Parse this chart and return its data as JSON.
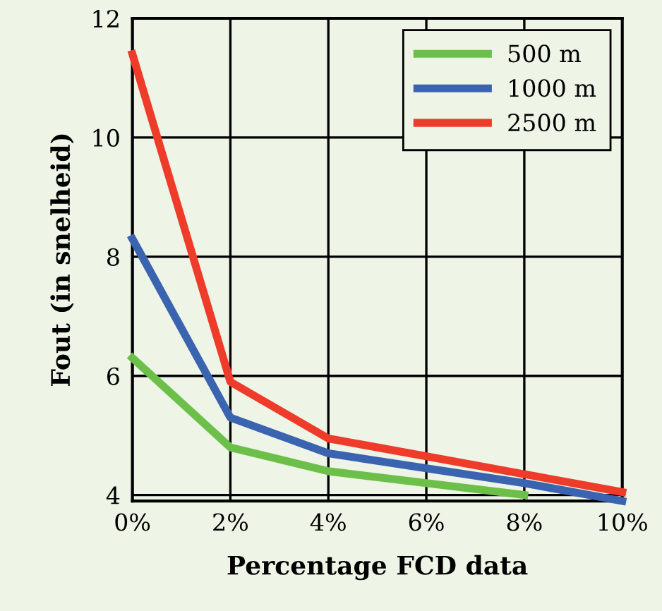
{
  "chart_data": {
    "type": "line",
    "xlabel": "Percentage FCD data",
    "ylabel": "Fout (in snelheid)",
    "x": [
      0,
      2,
      4,
      6,
      8,
      10
    ],
    "series": [
      {
        "name": "500 m",
        "color": "#6cc04a",
        "values": [
          6.3,
          4.8,
          4.4,
          4.2,
          4.0,
          null
        ]
      },
      {
        "name": "1000 m",
        "color": "#3a63b0",
        "values": [
          8.3,
          5.3,
          4.7,
          4.45,
          4.2,
          3.9
        ]
      },
      {
        "name": "2500 m",
        "color": "#ee3b2a",
        "values": [
          11.4,
          5.9,
          4.95,
          4.65,
          4.35,
          4.05
        ]
      }
    ],
    "xlim": [
      0,
      10
    ],
    "ylim": [
      3.9,
      12
    ],
    "xticks": [
      {
        "value": 0,
        "label": "0%"
      },
      {
        "value": 2,
        "label": "2%"
      },
      {
        "value": 4,
        "label": "4%"
      },
      {
        "value": 6,
        "label": "6%"
      },
      {
        "value": 8,
        "label": "8%"
      },
      {
        "value": 10,
        "label": "10%"
      }
    ],
    "yticks": [
      4,
      6,
      8,
      10,
      12
    ],
    "grid": true,
    "legend": "top right",
    "marker": "none",
    "line_style": "solid"
  }
}
